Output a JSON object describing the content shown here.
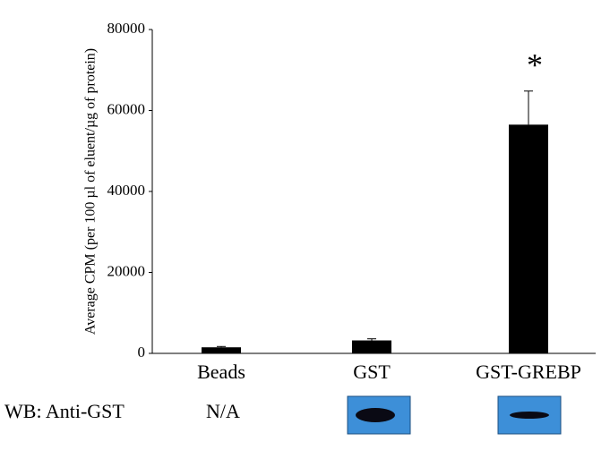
{
  "chart_data": {
    "type": "bar",
    "y_label": "Average CPM (per 100 µl of eluent/µg of protein)",
    "categories": [
      "Beads",
      "GST",
      "GST-GREBP"
    ],
    "values": [
      1500,
      3200,
      56500
    ],
    "errors": [
      200,
      400,
      8300
    ],
    "color": "#000000",
    "ylim": [
      0,
      80000
    ],
    "yticks": [
      0,
      20000,
      40000,
      60000,
      80000
    ],
    "grid": false,
    "annotation": "*"
  },
  "western_blot": {
    "label": "WB: Anti-GST",
    "lane_note": "N/A"
  }
}
